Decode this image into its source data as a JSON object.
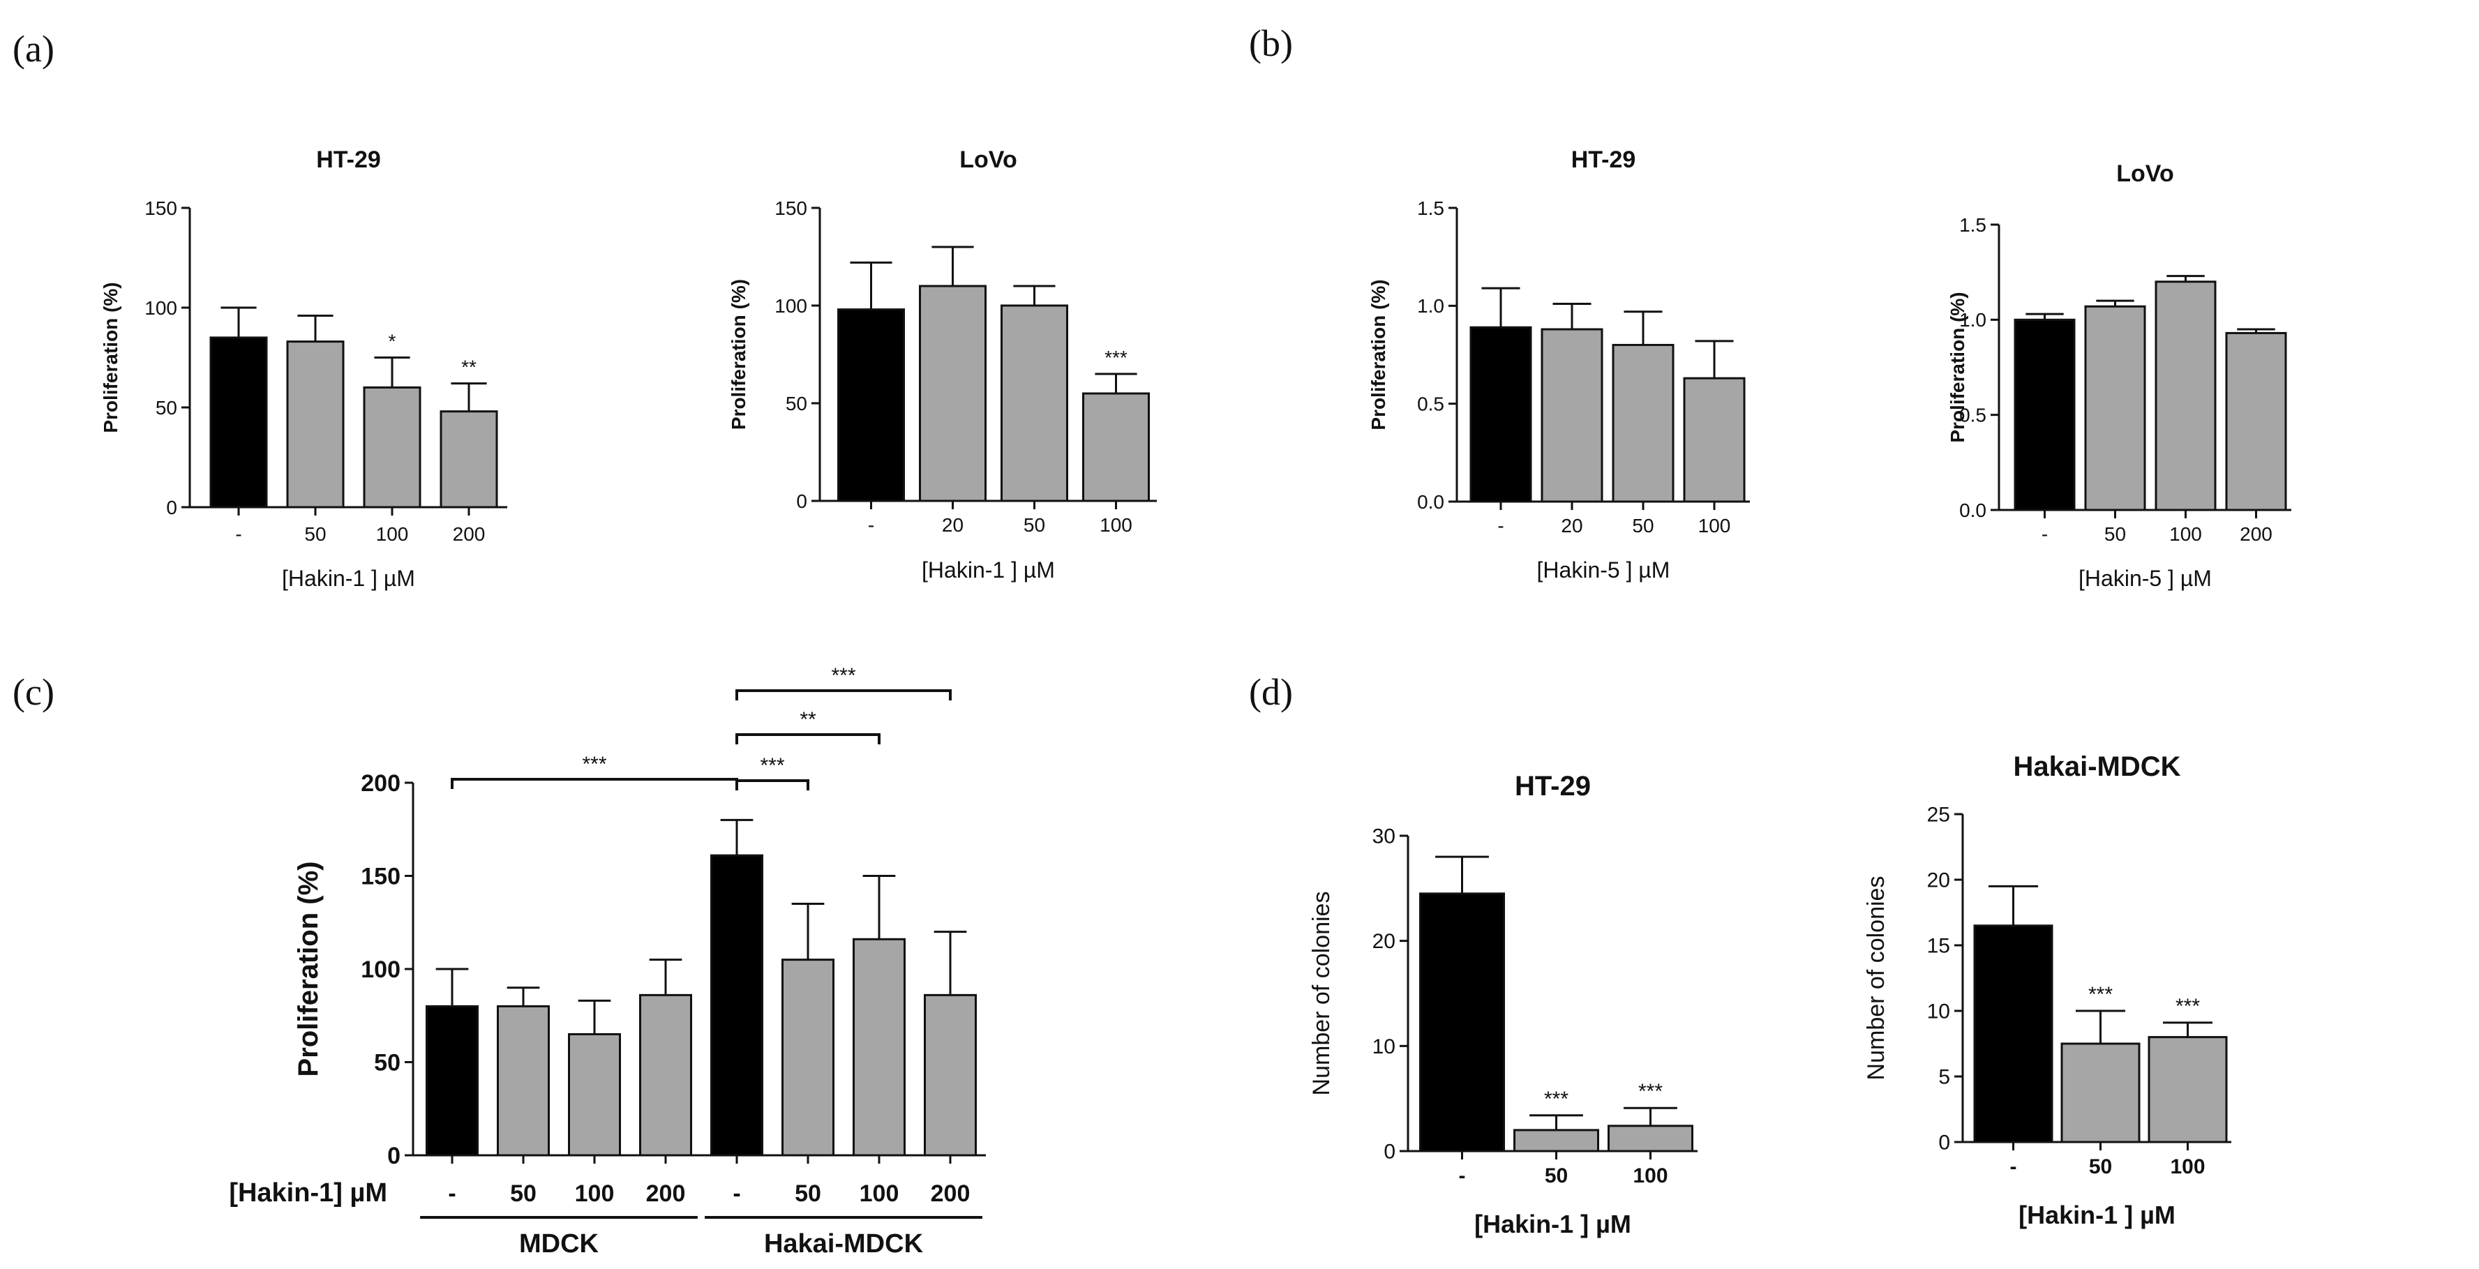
{
  "panel_labels": [
    "(a)",
    "(b)",
    "(c)",
    "(d)"
  ],
  "colors": {
    "control": "#000000",
    "treated": "#a6a6a6",
    "axis": "#111111"
  },
  "chart_data": [
    {
      "id": "a1",
      "panel": "(a)",
      "type": "bar",
      "title": "HT-29",
      "xlabel": "[Hakin-1 ] µM",
      "ylabel": "Proliferation (%)",
      "categories": [
        "-",
        "50",
        "100",
        "200"
      ],
      "values": [
        85,
        83,
        60,
        48
      ],
      "errors": [
        15,
        13,
        15,
        14
      ],
      "significance": [
        "",
        "",
        "*",
        "**"
      ],
      "bar_colors": [
        "control",
        "treated",
        "treated",
        "treated"
      ],
      "ylim": [
        0,
        150
      ],
      "yticks": [
        "0",
        "50",
        "100",
        "150"
      ],
      "grid": false
    },
    {
      "id": "a2",
      "panel": "(a)",
      "type": "bar",
      "title": "LoVo",
      "xlabel": "[Hakin-1 ] µM",
      "ylabel": "Proliferation (%)",
      "categories": [
        "-",
        "20",
        "50",
        "100"
      ],
      "values": [
        98,
        110,
        100,
        55
      ],
      "errors": [
        24,
        20,
        10,
        10
      ],
      "significance": [
        "",
        "",
        "",
        "***"
      ],
      "bar_colors": [
        "control",
        "treated",
        "treated",
        "treated"
      ],
      "ylim": [
        0,
        150
      ],
      "yticks": [
        "0",
        "50",
        "100",
        "150"
      ],
      "grid": false
    },
    {
      "id": "b1",
      "panel": "(b)",
      "type": "bar",
      "title": "HT-29",
      "xlabel": "[Hakin-5 ] µM",
      "ylabel": "Proliferation (%)",
      "categories": [
        "-",
        "20",
        "50",
        "100"
      ],
      "values": [
        0.89,
        0.88,
        0.8,
        0.63
      ],
      "errors": [
        0.2,
        0.13,
        0.17,
        0.19
      ],
      "significance": [
        "",
        "",
        "",
        ""
      ],
      "bar_colors": [
        "control",
        "treated",
        "treated",
        "treated"
      ],
      "ylim": [
        0,
        1.5
      ],
      "yticks": [
        "0.0",
        "0.5",
        "1.0",
        "1.5"
      ],
      "grid": false
    },
    {
      "id": "b2",
      "panel": "(b)",
      "type": "bar",
      "title": "LoVo",
      "xlabel": "[Hakin-5 ] µM",
      "ylabel": "Proliferation (%)",
      "categories": [
        "-",
        "50",
        "100",
        "200"
      ],
      "values": [
        1.0,
        1.07,
        1.2,
        0.93
      ],
      "errors": [
        0.03,
        0.03,
        0.03,
        0.02
      ],
      "significance": [
        "",
        "",
        "",
        ""
      ],
      "bar_colors": [
        "control",
        "treated",
        "treated",
        "treated"
      ],
      "ylim": [
        0,
        1.5
      ],
      "yticks": [
        "0.0",
        "0.5",
        "1.0",
        "1.5"
      ],
      "grid": false
    },
    {
      "id": "c1",
      "panel": "(c)",
      "type": "bar",
      "title": "",
      "xlabel": "[Hakin-1] µM",
      "ylabel": "Proliferation (%)",
      "categories": [
        "-",
        "50",
        "100",
        "200",
        "-",
        "50",
        "100",
        "200"
      ],
      "values": [
        80,
        80,
        65,
        86,
        161,
        105,
        116,
        86
      ],
      "errors": [
        20,
        10,
        18,
        19,
        19,
        30,
        34,
        34
      ],
      "significance": [
        "",
        "",
        "",
        "",
        "",
        "",
        "",
        ""
      ],
      "bar_colors": [
        "control",
        "treated",
        "treated",
        "treated",
        "control",
        "treated",
        "treated",
        "treated"
      ],
      "groups": [
        {
          "name": "MDCK",
          "from": 0,
          "to": 3
        },
        {
          "name": "Hakai-MDCK",
          "from": 4,
          "to": 7
        }
      ],
      "brackets": [
        {
          "from": 0,
          "to": 4,
          "label": "***"
        },
        {
          "from": 4,
          "to": 5,
          "label": "***"
        },
        {
          "from": 4,
          "to": 6,
          "label": "**"
        },
        {
          "from": 4,
          "to": 7,
          "label": "***"
        }
      ],
      "ylim": [
        0,
        200
      ],
      "yticks": [
        "0",
        "50",
        "100",
        "150",
        "200"
      ],
      "grid": false
    },
    {
      "id": "d1",
      "panel": "(d)",
      "type": "bar",
      "title": "HT-29",
      "xlabel": "[Hakin-1 ] µM",
      "ylabel": "Number of colonies",
      "categories": [
        "-",
        "50",
        "100"
      ],
      "values": [
        24.5,
        2.0,
        2.4
      ],
      "errors": [
        3.5,
        1.4,
        1.7
      ],
      "significance": [
        "",
        "***",
        "***"
      ],
      "bar_colors": [
        "control",
        "treated",
        "treated"
      ],
      "ylim": [
        0,
        30
      ],
      "yticks": [
        "0",
        "10",
        "20",
        "30"
      ],
      "grid": false
    },
    {
      "id": "d2",
      "panel": "(d)",
      "type": "bar",
      "title": "Hakai-MDCK",
      "xlabel": "[Hakin-1 ] µM",
      "ylabel": "Number of colonies",
      "categories": [
        "-",
        "50",
        "100"
      ],
      "values": [
        16.5,
        7.5,
        8.0
      ],
      "errors": [
        3.0,
        2.5,
        1.1
      ],
      "significance": [
        "",
        "***",
        "***"
      ],
      "bar_colors": [
        "control",
        "treated",
        "treated"
      ],
      "ylim": [
        0,
        25
      ],
      "yticks": [
        "0",
        "5",
        "10",
        "15",
        "20",
        "25"
      ],
      "grid": false
    }
  ]
}
